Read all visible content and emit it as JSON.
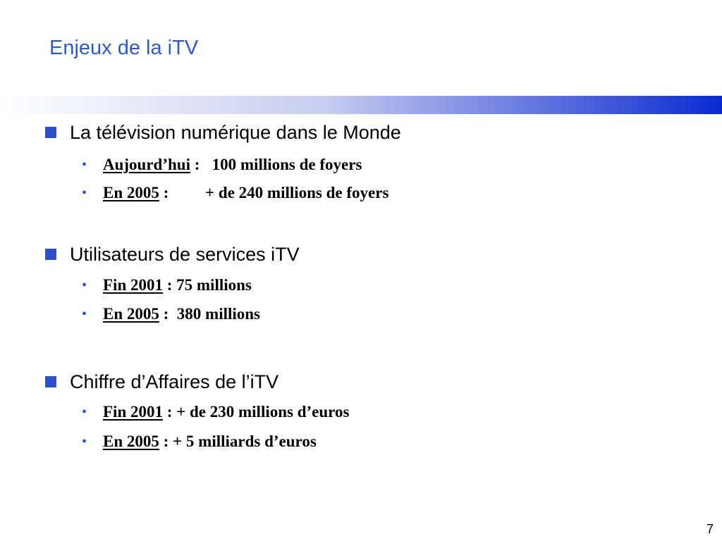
{
  "slide": {
    "title": "Enjeux de la iTV",
    "page_number": "7"
  },
  "colors": {
    "title": "#2a5bd0",
    "bullet": "#2d4fc8",
    "gradient_start": "#ffffff",
    "gradient_end": "#0a2ad0"
  },
  "icons": {
    "section_bullet": "square-bullet-icon",
    "item_bullet": "dot-bullet-icon"
  },
  "sections": [
    {
      "heading": "La télévision numérique dans le Monde",
      "items": [
        {
          "bullet": "•",
          "label": "Aujourd’hui",
          "value": " :   100 millions de foyers"
        },
        {
          "bullet": "•",
          "label": "En 2005",
          "value": " :         + de 240 millions de foyers"
        }
      ]
    },
    {
      "heading": "Utilisateurs de services iTV",
      "items": [
        {
          "bullet": "•",
          "label": "Fin 2001",
          "value": " : 75 millions"
        },
        {
          "bullet": "•",
          "label": "En 2005",
          "value": " :  380 millions"
        }
      ]
    },
    {
      "heading": "Chiffre d’Affaires de l’iTV",
      "items": [
        {
          "bullet": "•",
          "label": "Fin 2001",
          "value": " : + de 230 millions d’euros"
        },
        {
          "bullet": "•",
          "label": "En 2005",
          "value": " : + 5 milliards d’euros"
        }
      ]
    }
  ]
}
